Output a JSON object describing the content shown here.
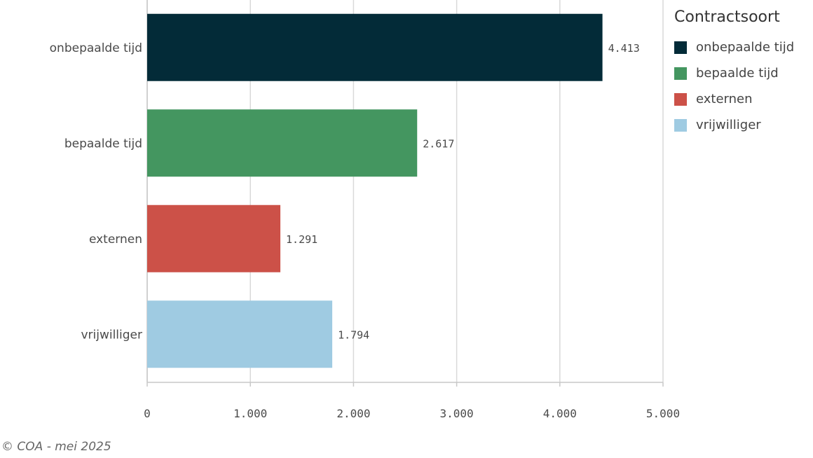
{
  "chart_data": {
    "type": "bar",
    "orientation": "horizontal",
    "categories": [
      "onbepaalde tijd",
      "bepaalde tijd",
      "externen",
      "vrijwilliger"
    ],
    "values": [
      4413,
      2617,
      1291,
      1794
    ],
    "value_labels": [
      "4.413",
      "2.617",
      "1.291",
      "1.794"
    ],
    "colors": [
      "#032b38",
      "#449660",
      "#cc5148",
      "#9fcbe2"
    ],
    "xlim": [
      0,
      5000
    ],
    "x_ticks": [
      0,
      1000,
      2000,
      3000,
      4000,
      5000
    ],
    "x_tick_labels": [
      "0",
      "1.000",
      "2.000",
      "3.000",
      "4.000",
      "5.000"
    ],
    "grid": true,
    "legend": {
      "title": "Contractsoort",
      "placement": "right",
      "entries": [
        "onbepaalde tijd",
        "bepaalde tijd",
        "externen",
        "vrijwilliger"
      ]
    }
  },
  "footer": {
    "credit": "© COA - mei 2025"
  }
}
